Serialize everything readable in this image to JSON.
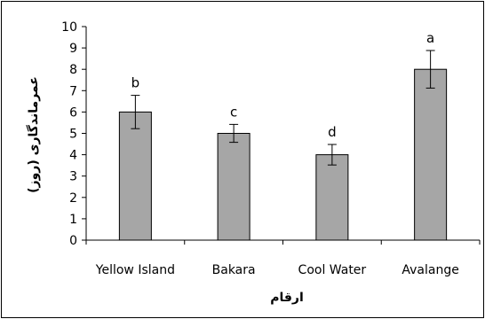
{
  "chart_data": {
    "type": "bar",
    "title": "",
    "xlabel": "ارقام",
    "ylabel": "عمرماندگاری (روز)",
    "ylim": [
      0,
      10
    ],
    "yticks": [
      0,
      1,
      2,
      3,
      4,
      5,
      6,
      7,
      8,
      9,
      10
    ],
    "grid": false,
    "categories": [
      "Yellow Island",
      "Bakara",
      "Cool Water",
      "Avalange"
    ],
    "values": [
      6,
      5,
      4,
      8
    ],
    "error": [
      0.78,
      0.42,
      0.48,
      0.88
    ],
    "significance_letters": [
      "b",
      "c",
      "d",
      "a"
    ],
    "bar_color": "#a6a6a6"
  }
}
